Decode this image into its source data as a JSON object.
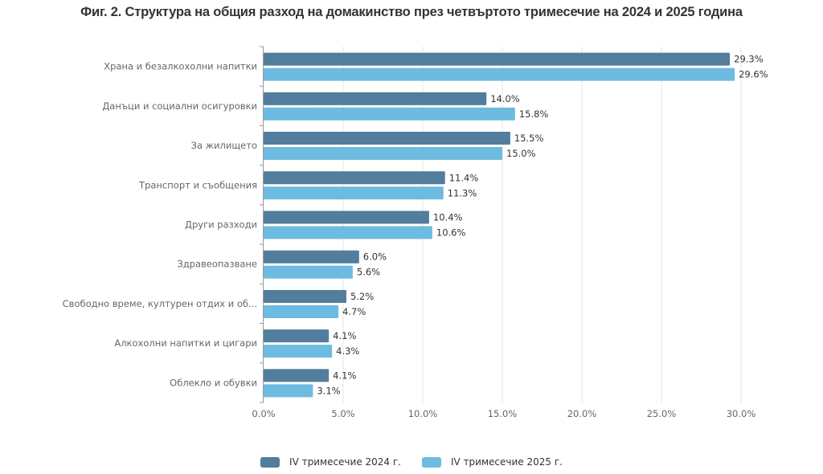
{
  "chart_data": {
    "type": "bar",
    "orientation": "horizontal",
    "title": "Фиг. 2. Структура на общия разход на домакинство през четвъртото тримесечие на 2024 и 2025 година",
    "categories": [
      "Храна и безалкохолни напитки",
      "Данъци и социални осигуровки",
      "За жилището",
      "Транспорт и съобщения",
      "Други разходи",
      "Здравеопазване",
      "Свободно време, културен отдих и об...",
      "Алкохолни напитки и цигари",
      "Облекло и обувки"
    ],
    "series": [
      {
        "name": "IV тримесечие 2024 г.",
        "color": "#527d9c",
        "values": [
          29.3,
          14.0,
          15.5,
          11.4,
          10.4,
          6.0,
          5.2,
          4.1,
          4.1
        ],
        "labels": [
          "29.3%",
          "14.0%",
          "15.5%",
          "11.4%",
          "10.4%",
          "6.0%",
          "5.2%",
          "4.1%",
          "4.1%"
        ]
      },
      {
        "name": "IV тримесечие 2025 г.",
        "color": "#6dbbe0",
        "values": [
          29.6,
          15.8,
          15.0,
          11.3,
          10.6,
          5.6,
          4.7,
          4.3,
          3.1
        ],
        "labels": [
          "29.6%",
          "15.8%",
          "15.0%",
          "11.3%",
          "10.6%",
          "5.6%",
          "4.7%",
          "4.3%",
          "3.1%"
        ]
      }
    ],
    "xlim": [
      0,
      30
    ],
    "xticks": [
      0,
      5,
      10,
      15,
      20,
      25,
      30
    ],
    "xtick_labels": [
      "0.0%",
      "5.0%",
      "10.0%",
      "15.0%",
      "20.0%",
      "25.0%",
      "30.0%"
    ],
    "grid": true,
    "legend_position": "bottom"
  }
}
